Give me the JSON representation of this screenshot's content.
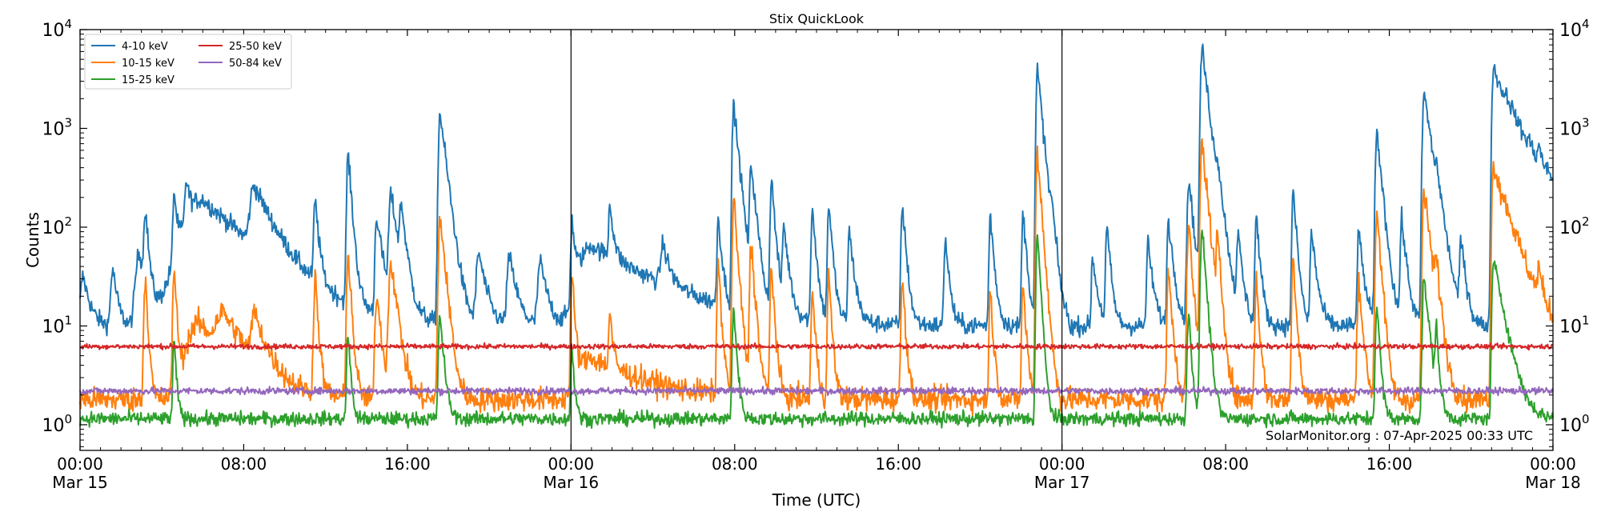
{
  "chart_data": {
    "type": "line",
    "title": "Stix QuickLook",
    "xlabel": "Time (UTC)",
    "ylabel": "Counts",
    "yscale": "log",
    "ylim": [
      0.55,
      10000
    ],
    "xlim_hours": [
      0,
      72
    ],
    "x_ticks": [
      {
        "hour": 0,
        "time": "00:00",
        "date": "Mar 15"
      },
      {
        "hour": 8,
        "time": "08:00",
        "date": ""
      },
      {
        "hour": 16,
        "time": "16:00",
        "date": ""
      },
      {
        "hour": 24,
        "time": "00:00",
        "date": "Mar 16"
      },
      {
        "hour": 32,
        "time": "08:00",
        "date": ""
      },
      {
        "hour": 40,
        "time": "16:00",
        "date": ""
      },
      {
        "hour": 48,
        "time": "00:00",
        "date": "Mar 17"
      },
      {
        "hour": 56,
        "time": "08:00",
        "date": ""
      },
      {
        "hour": 64,
        "time": "16:00",
        "date": ""
      },
      {
        "hour": 72,
        "time": "00:00",
        "date": "Mar 18"
      }
    ],
    "y_ticks": [
      {
        "value": 1,
        "base": "10",
        "exp": "0"
      },
      {
        "value": 10,
        "base": "10",
        "exp": "1"
      },
      {
        "value": 100,
        "base": "10",
        "exp": "2"
      },
      {
        "value": 1000,
        "base": "10",
        "exp": "3"
      },
      {
        "value": 10000,
        "base": "10",
        "exp": "4"
      }
    ],
    "day_separators_hours": [
      24,
      48
    ],
    "annotation": "SolarMonitor.org : 07-Apr-2025 00:33 UTC",
    "legend_position": "top-left",
    "series": [
      {
        "name": "4-10 keV",
        "color": "#1f77b4",
        "kind": "flare",
        "base": 10,
        "noise": 0.09,
        "events": [
          [
            0.15,
            22,
            0.1,
            0.3
          ],
          [
            1.6,
            28,
            0.08,
            0.2
          ],
          [
            2.9,
            45,
            0.15,
            0.4
          ],
          [
            3.2,
            130,
            0.06,
            0.12
          ],
          [
            4.6,
            190,
            0.05,
            0.12
          ],
          [
            5.2,
            190,
            0.06,
            0.15
          ],
          [
            6.0,
            180,
            0.8,
            2.2
          ],
          [
            8.5,
            200,
            0.15,
            0.8
          ],
          [
            11.5,
            160,
            0.06,
            0.15
          ],
          [
            13.1,
            550,
            0.05,
            0.15
          ],
          [
            14.5,
            120,
            0.06,
            0.25
          ],
          [
            15.2,
            200,
            0.08,
            0.3
          ],
          [
            15.7,
            130,
            0.06,
            0.2
          ],
          [
            17.6,
            1450,
            0.06,
            0.25
          ],
          [
            19.5,
            45,
            0.1,
            0.3
          ],
          [
            21.0,
            40,
            0.1,
            0.3
          ],
          [
            22.5,
            35,
            0.1,
            0.3
          ],
          [
            24.05,
            100,
            0.05,
            0.15
          ],
          [
            25.0,
            55,
            0.5,
            3.0
          ],
          [
            25.9,
            130,
            0.05,
            0.15
          ],
          [
            28.5,
            40,
            0.1,
            0.3
          ],
          [
            31.2,
            110,
            0.05,
            0.15
          ],
          [
            31.95,
            1800,
            0.05,
            0.2
          ],
          [
            32.8,
            420,
            0.05,
            0.2
          ],
          [
            33.8,
            300,
            0.05,
            0.15
          ],
          [
            34.4,
            90,
            0.05,
            0.2
          ],
          [
            35.8,
            150,
            0.05,
            0.15
          ],
          [
            36.6,
            160,
            0.05,
            0.15
          ],
          [
            37.6,
            80,
            0.05,
            0.2
          ],
          [
            40.2,
            160,
            0.05,
            0.15
          ],
          [
            42.3,
            70,
            0.05,
            0.15
          ],
          [
            44.5,
            120,
            0.05,
            0.15
          ],
          [
            46.1,
            130,
            0.05,
            0.15
          ],
          [
            46.8,
            4000,
            0.05,
            0.2
          ],
          [
            47.5,
            70,
            0.05,
            0.15
          ],
          [
            49.5,
            40,
            0.05,
            0.2
          ],
          [
            50.2,
            90,
            0.05,
            0.15
          ],
          [
            52.2,
            60,
            0.05,
            0.2
          ],
          [
            53.2,
            110,
            0.05,
            0.2
          ],
          [
            54.2,
            300,
            0.06,
            0.2
          ],
          [
            54.85,
            6500,
            0.06,
            0.25
          ],
          [
            55.6,
            200,
            0.05,
            0.2
          ],
          [
            56.6,
            70,
            0.05,
            0.2
          ],
          [
            57.5,
            120,
            0.05,
            0.15
          ],
          [
            59.3,
            220,
            0.05,
            0.15
          ],
          [
            60.2,
            80,
            0.05,
            0.2
          ],
          [
            62.5,
            80,
            0.05,
            0.2
          ],
          [
            63.4,
            900,
            0.06,
            0.2
          ],
          [
            64.6,
            110,
            0.05,
            0.2
          ],
          [
            65.7,
            2300,
            0.06,
            0.3
          ],
          [
            66.3,
            150,
            0.05,
            0.2
          ],
          [
            67.5,
            60,
            0.05,
            0.2
          ],
          [
            69.1,
            4300,
            0.06,
            0.6
          ],
          [
            69.8,
            700,
            0.2,
            2.0
          ],
          [
            70.8,
            120,
            0.05,
            0.2
          ],
          [
            71.3,
            230,
            0.05,
            0.2
          ],
          [
            71.8,
            40,
            0.05,
            0.2
          ]
        ]
      },
      {
        "name": "10-15 keV",
        "color": "#ff7f0e",
        "kind": "flare",
        "base": 1.8,
        "noise": 0.12,
        "events": [
          [
            3.2,
            30,
            0.06,
            0.1
          ],
          [
            4.6,
            40,
            0.05,
            0.1
          ],
          [
            5.8,
            9,
            0.5,
            1.5
          ],
          [
            7.0,
            8,
            0.3,
            1.0
          ],
          [
            8.5,
            9,
            0.1,
            0.5
          ],
          [
            11.5,
            30,
            0.06,
            0.12
          ],
          [
            13.1,
            60,
            0.05,
            0.12
          ],
          [
            14.5,
            20,
            0.06,
            0.2
          ],
          [
            15.2,
            45,
            0.08,
            0.25
          ],
          [
            17.6,
            130,
            0.06,
            0.2
          ],
          [
            24.05,
            30,
            0.05,
            0.12
          ],
          [
            25.0,
            3,
            0.5,
            2.5
          ],
          [
            25.9,
            10,
            0.05,
            0.12
          ],
          [
            31.2,
            40,
            0.05,
            0.12
          ],
          [
            31.95,
            190,
            0.05,
            0.15
          ],
          [
            32.8,
            70,
            0.05,
            0.15
          ],
          [
            33.8,
            40,
            0.05,
            0.12
          ],
          [
            35.8,
            20,
            0.05,
            0.12
          ],
          [
            36.6,
            30,
            0.05,
            0.12
          ],
          [
            40.2,
            30,
            0.05,
            0.12
          ],
          [
            44.5,
            20,
            0.05,
            0.12
          ],
          [
            46.1,
            25,
            0.05,
            0.12
          ],
          [
            46.8,
            600,
            0.05,
            0.15
          ],
          [
            53.2,
            35,
            0.05,
            0.15
          ],
          [
            54.2,
            100,
            0.06,
            0.15
          ],
          [
            54.85,
            750,
            0.06,
            0.2
          ],
          [
            55.6,
            60,
            0.05,
            0.15
          ],
          [
            57.5,
            30,
            0.05,
            0.12
          ],
          [
            59.3,
            50,
            0.05,
            0.12
          ],
          [
            62.5,
            30,
            0.05,
            0.15
          ],
          [
            63.4,
            150,
            0.06,
            0.15
          ],
          [
            65.7,
            230,
            0.06,
            0.25
          ],
          [
            66.3,
            30,
            0.05,
            0.15
          ],
          [
            69.1,
            450,
            0.06,
            0.5
          ],
          [
            69.8,
            40,
            0.2,
            1.5
          ],
          [
            71.3,
            20,
            0.05,
            0.15
          ]
        ]
      },
      {
        "name": "15-25 keV",
        "color": "#2ca02c",
        "kind": "flare",
        "base": 1.15,
        "noise": 0.07,
        "events": [
          [
            4.6,
            6,
            0.05,
            0.1
          ],
          [
            13.1,
            8,
            0.05,
            0.1
          ],
          [
            17.6,
            12,
            0.06,
            0.15
          ],
          [
            24.05,
            5,
            0.05,
            0.1
          ],
          [
            31.95,
            15,
            0.05,
            0.12
          ],
          [
            46.8,
            90,
            0.05,
            0.12
          ],
          [
            54.2,
            12,
            0.06,
            0.12
          ],
          [
            54.85,
            100,
            0.06,
            0.15
          ],
          [
            63.4,
            15,
            0.06,
            0.12
          ],
          [
            65.7,
            30,
            0.06,
            0.2
          ],
          [
            69.1,
            45,
            0.06,
            0.4
          ],
          [
            66.3,
            8,
            0.05,
            0.1
          ]
        ]
      },
      {
        "name": "25-50 keV",
        "color": "#d62728",
        "kind": "flat",
        "base": 6.2,
        "noise": 0.025
      },
      {
        "name": "50-84 keV",
        "color": "#9467bd",
        "kind": "flat",
        "base": 2.2,
        "noise": 0.035
      }
    ]
  }
}
